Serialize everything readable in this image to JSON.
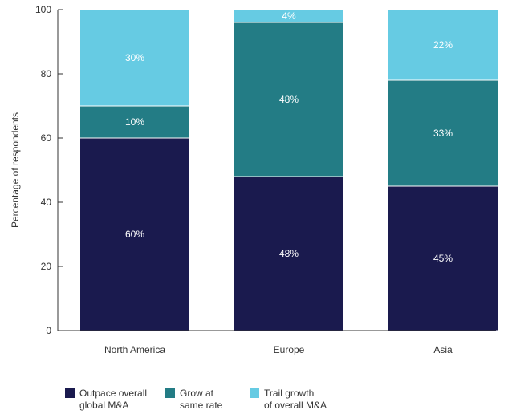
{
  "chart_data": {
    "type": "bar",
    "stacked": true,
    "categories": [
      "North America",
      "Europe",
      "Asia"
    ],
    "series": [
      {
        "name": "Outpace overall\nglobal M&A",
        "values": [
          60,
          48,
          45
        ],
        "labels": [
          "60%",
          "48%",
          "45%"
        ],
        "color": "#1a1a4e"
      },
      {
        "name": "Grow at\nsame rate",
        "values": [
          10,
          48,
          33
        ],
        "labels": [
          "10%",
          "48%",
          "33%"
        ],
        "color": "#237c85"
      },
      {
        "name": "Trail growth\nof overall M&A",
        "values": [
          30,
          4,
          22
        ],
        "labels": [
          "30%",
          "4%",
          "22%"
        ],
        "color": "#66cbe3"
      }
    ],
    "title": "",
    "xlabel": "",
    "ylabel": "Percentage of respondents",
    "ylim": [
      0,
      100
    ],
    "yticks": [
      0,
      20,
      40,
      60,
      80,
      100
    ],
    "grid": false,
    "legend_position": "bottom-left"
  }
}
